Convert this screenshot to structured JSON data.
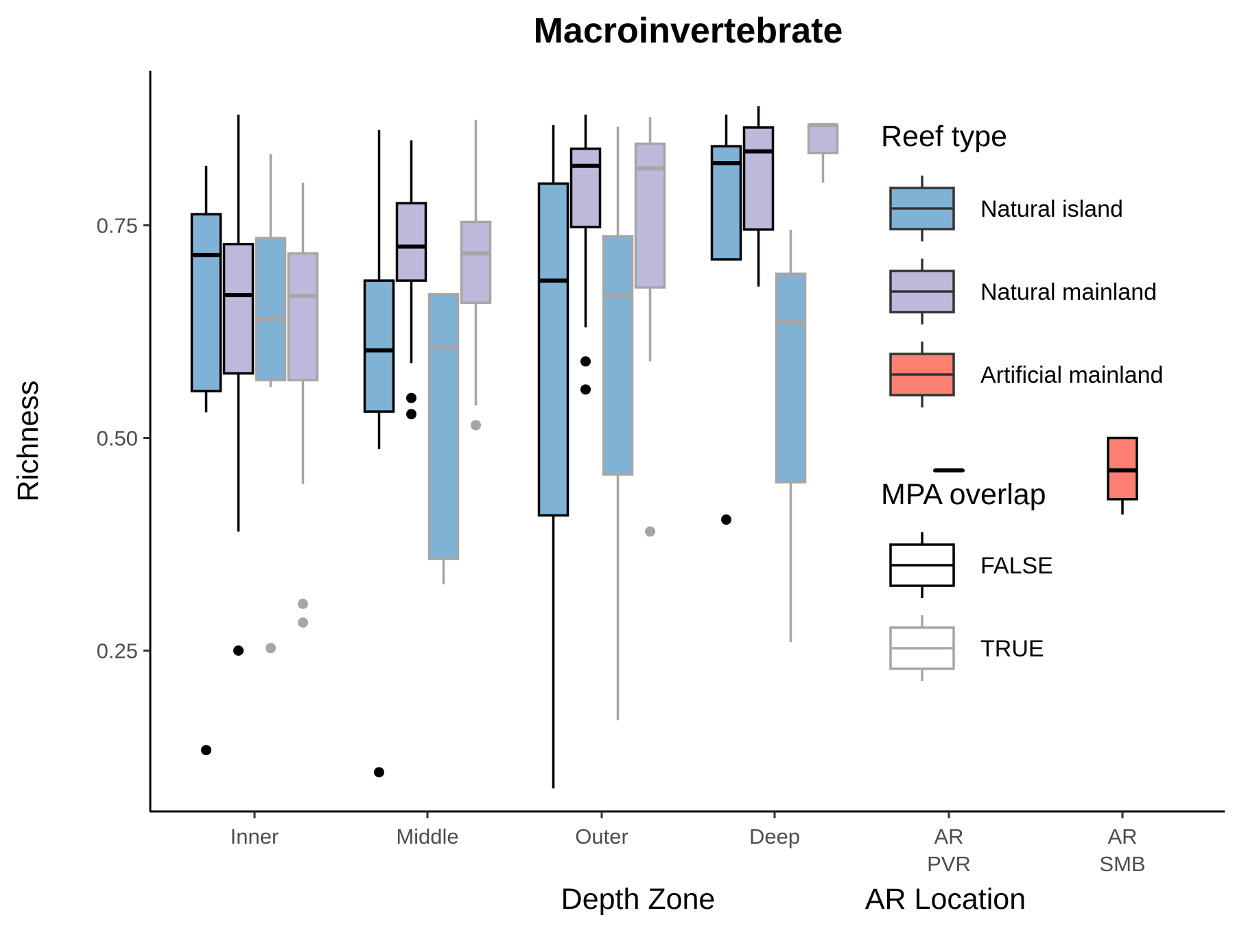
{
  "chart_data": {
    "type": "boxplot",
    "title": "Macroinvertebrate",
    "ylabel": "Richness",
    "xlabel": "Depth Zone",
    "xlabel_secondary": "AR Location",
    "ylim": [
      0.06,
      0.93
    ],
    "yticks": [
      0.25,
      0.5,
      0.75
    ],
    "ytick_labels": [
      "0.25",
      "0.50",
      "0.75"
    ],
    "categories": [
      "Inner",
      "Middle",
      "Outer",
      "Deep",
      "AR\nPVR",
      "AR\nSMB"
    ],
    "category_labels": [
      [
        "Inner"
      ],
      [
        "Middle"
      ],
      [
        "Outer"
      ],
      [
        "Deep"
      ],
      [
        "AR",
        "PVR"
      ],
      [
        "AR",
        "SMB"
      ]
    ],
    "fill_colors": {
      "Natural island": "#7fb2d5",
      "Natural mainland": "#bdb9db",
      "Artificial mainland": "#fb8072"
    },
    "outline_colors": {
      "FALSE": "#000000",
      "TRUE": "#a6a6a6"
    },
    "boxes": [
      {
        "category": "Inner",
        "reef": "Natural island",
        "mpa": "FALSE",
        "slot": -1.5,
        "whisker_low": 0.53,
        "q1": 0.555,
        "median": 0.715,
        "q3": 0.763,
        "whisker_high": 0.82,
        "outliers": [
          0.133
        ]
      },
      {
        "category": "Inner",
        "reef": "Natural mainland",
        "mpa": "FALSE",
        "slot": -0.5,
        "whisker_low": 0.39,
        "q1": 0.576,
        "median": 0.668,
        "q3": 0.728,
        "whisker_high": 0.88,
        "outliers": [
          0.25
        ]
      },
      {
        "category": "Inner",
        "reef": "Natural island",
        "mpa": "TRUE",
        "slot": 0.5,
        "whisker_low": 0.56,
        "q1": 0.568,
        "median": 0.64,
        "q3": 0.735,
        "whisker_high": 0.834,
        "outliers": [
          0.253
        ]
      },
      {
        "category": "Inner",
        "reef": "Natural mainland",
        "mpa": "TRUE",
        "slot": 1.5,
        "whisker_low": 0.446,
        "q1": 0.568,
        "median": 0.667,
        "q3": 0.717,
        "whisker_high": 0.8,
        "outliers": [
          0.283,
          0.305
        ]
      },
      {
        "category": "Middle",
        "reef": "Natural island",
        "mpa": "FALSE",
        "slot": -1.5,
        "whisker_low": 0.487,
        "q1": 0.531,
        "median": 0.603,
        "q3": 0.685,
        "whisker_high": 0.862,
        "outliers": [
          0.107
        ]
      },
      {
        "category": "Middle",
        "reef": "Natural mainland",
        "mpa": "FALSE",
        "slot": -0.5,
        "whisker_low": 0.588,
        "q1": 0.685,
        "median": 0.725,
        "q3": 0.776,
        "whisker_high": 0.85,
        "outliers": [
          0.528,
          0.547
        ]
      },
      {
        "category": "Middle",
        "reef": "Natural island",
        "mpa": "TRUE",
        "slot": 0.5,
        "whisker_low": 0.328,
        "q1": 0.358,
        "median": 0.606,
        "q3": 0.669,
        "whisker_high": 0.669,
        "outliers": []
      },
      {
        "category": "Middle",
        "reef": "Natural mainland",
        "mpa": "TRUE",
        "slot": 1.5,
        "whisker_low": 0.538,
        "q1": 0.659,
        "median": 0.717,
        "q3": 0.754,
        "whisker_high": 0.874,
        "outliers": [
          0.515
        ]
      },
      {
        "category": "Outer",
        "reef": "Natural island",
        "mpa": "FALSE",
        "slot": -1.5,
        "whisker_low": 0.088,
        "q1": 0.409,
        "median": 0.685,
        "q3": 0.799,
        "whisker_high": 0.868,
        "outliers": []
      },
      {
        "category": "Outer",
        "reef": "Natural mainland",
        "mpa": "FALSE",
        "slot": -0.5,
        "whisker_low": 0.63,
        "q1": 0.748,
        "median": 0.82,
        "q3": 0.84,
        "whisker_high": 0.88,
        "outliers": [
          0.557,
          0.59
        ]
      },
      {
        "category": "Outer",
        "reef": "Natural island",
        "mpa": "TRUE",
        "slot": 0.5,
        "whisker_low": 0.168,
        "q1": 0.457,
        "median": 0.667,
        "q3": 0.737,
        "whisker_high": 0.866,
        "outliers": []
      },
      {
        "category": "Outer",
        "reef": "Natural mainland",
        "mpa": "TRUE",
        "slot": 1.5,
        "whisker_low": 0.59,
        "q1": 0.677,
        "median": 0.817,
        "q3": 0.846,
        "whisker_high": 0.877,
        "outliers": [
          0.39
        ]
      },
      {
        "category": "Deep",
        "reef": "Natural island",
        "mpa": "FALSE",
        "slot": -1.5,
        "whisker_low": 0.71,
        "q1": 0.71,
        "median": 0.823,
        "q3": 0.843,
        "whisker_high": 0.88,
        "outliers": [
          0.404
        ]
      },
      {
        "category": "Deep",
        "reef": "Natural mainland",
        "mpa": "FALSE",
        "slot": -0.5,
        "whisker_low": 0.678,
        "q1": 0.745,
        "median": 0.837,
        "q3": 0.865,
        "whisker_high": 0.89,
        "outliers": []
      },
      {
        "category": "Deep",
        "reef": "Natural island",
        "mpa": "TRUE",
        "slot": 0.5,
        "whisker_low": 0.26,
        "q1": 0.448,
        "median": 0.636,
        "q3": 0.693,
        "whisker_high": 0.745,
        "outliers": []
      },
      {
        "category": "Deep",
        "reef": "Natural mainland",
        "mpa": "TRUE",
        "slot": 1.5,
        "whisker_low": 0.8,
        "q1": 0.835,
        "median": 0.868,
        "q3": 0.868,
        "whisker_high": 0.868,
        "outliers": []
      },
      {
        "category": "AR\nPVR",
        "reef": "Artificial mainland",
        "mpa": "FALSE",
        "slot": 0,
        "whisker_low": 0.462,
        "q1": 0.462,
        "median": 0.462,
        "q3": 0.462,
        "whisker_high": 0.462,
        "outliers": []
      },
      {
        "category": "AR\nSMB",
        "reef": "Artificial mainland",
        "mpa": "FALSE",
        "slot": 0,
        "whisker_low": 0.41,
        "q1": 0.428,
        "median": 0.462,
        "q3": 0.5,
        "whisker_high": 0.5,
        "outliers": []
      }
    ],
    "legend": {
      "placement": "right",
      "groups": [
        {
          "title": "Reef type",
          "kind": "fill",
          "items": [
            "Natural island",
            "Natural mainland",
            "Artificial mainland"
          ]
        },
        {
          "title": "MPA overlap",
          "kind": "outline",
          "items": [
            "FALSE",
            "TRUE"
          ]
        }
      ]
    }
  }
}
